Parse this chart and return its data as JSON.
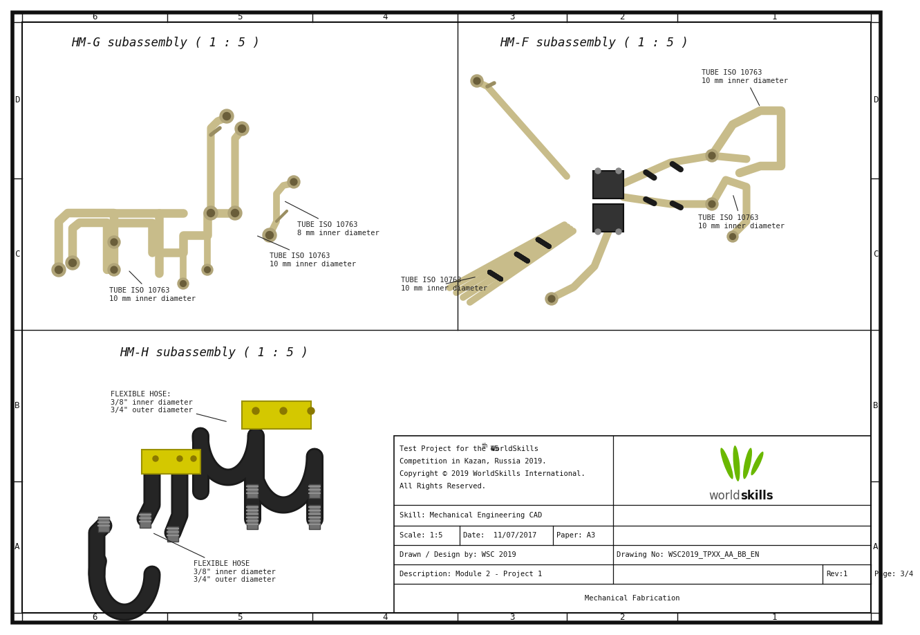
{
  "bg_color": "#ffffff",
  "border_color": "#111111",
  "title_g": "HM-G subassembly ( 1 : 5 )",
  "title_f": "HM-F subassembly ( 1 : 5 )",
  "title_h": "HM-H subassembly ( 1 : 5 )",
  "col_labels": [
    "6",
    "5",
    "4",
    "3",
    "2",
    "1"
  ],
  "row_labels": [
    "D",
    "C",
    "B",
    "A"
  ],
  "tube_color": "#c8bc8a",
  "tube_dark": "#9a8e62",
  "fitting_color": "#b0a478",
  "fitting_dark": "#6a5e3a",
  "hose_color": "#252525",
  "hose_mid": "#555555",
  "bracket_color": "#d4c800",
  "bracket_dark": "#9a9000",
  "valve_color": "#333333",
  "valve_edge": "#111111",
  "ann_fs": 7.5,
  "title_fs": 12.5,
  "tb_fs": 7.5,
  "ws_green": "#6ab800",
  "tb_text_line1": "Test Project for the 45",
  "tb_text_sup": "th",
  "tb_text_line1b": " WorldSkills",
  "tb_text_line2": "Competition in Kazan, Russia 2019.",
  "tb_text_line3": "Copyright © 2019 WorldSkills International.",
  "tb_text_line4": "All Rights Reserved.",
  "tb_skill": "Skill: Mechanical Engineering CAD",
  "tb_scale": "Scale: 1:5",
  "tb_date": "Date:  11/07/2017",
  "tb_paper": "Paper: A3",
  "tb_drawn": "Drawn / Design by: WSC 2019",
  "tb_drawing_no": "Drawing No: WSC2019_TPXX_AA_BB_EN",
  "tb_desc": "Description: Module 2 - Project 1",
  "tb_rev": "Rev:1",
  "tb_page": "Page: 3/4",
  "tb_mech": "Mechanical Fabrication"
}
